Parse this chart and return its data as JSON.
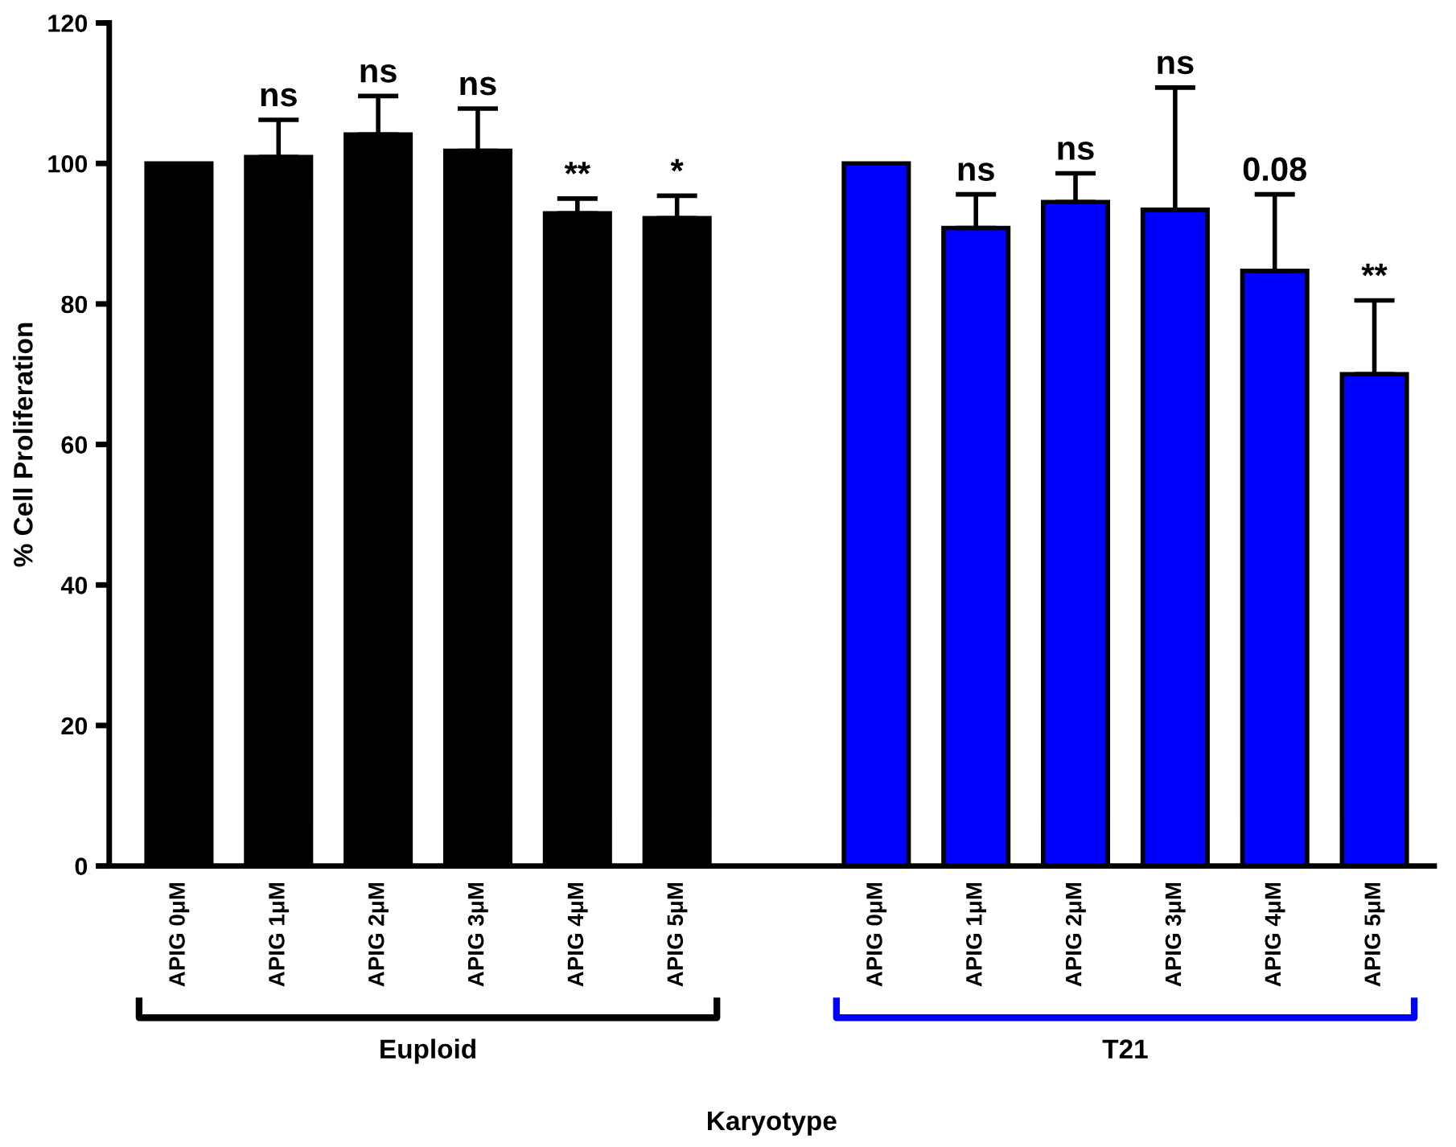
{
  "chart_data": {
    "type": "bar",
    "xlabel": "Karyotype",
    "ylabel": "% Cell Proliferation",
    "categories": [
      "APIG 0μM",
      "APIG 1μM",
      "APIG 2μM",
      "APIG 3μM",
      "APIG 4μM",
      "APIG 5μM",
      null,
      "APIG 0μM",
      "APIG 1μM",
      "APIG 2μM",
      "APIG 3μM",
      "APIG 4μM",
      "APIG 5μM"
    ],
    "values": [
      100,
      100.9,
      104.1,
      101.8,
      92.9,
      92.2,
      null,
      100,
      90.8,
      94.5,
      93.4,
      84.7,
      70.0
    ],
    "errors": [
      null,
      5.3,
      5.5,
      6.0,
      2.1,
      3.2,
      null,
      null,
      4.8,
      4.1,
      17.4,
      10.9,
      10.5
    ],
    "colors": [
      "#000000",
      "#000000",
      "#000000",
      "#000000",
      "#000000",
      "#000000",
      null,
      "#0000ff",
      "#0000ff",
      "#0000ff",
      "#0000ff",
      "#0000ff",
      "#0000ff"
    ],
    "annotations": [
      {
        "text": "ns",
        "y": 106.2
      },
      {
        "text": "ns",
        "y": 109.6
      },
      {
        "text": "ns",
        "y": 107.8
      },
      {
        "text": "**",
        "y": 95.0
      },
      {
        "text": "*",
        "y": 95.4
      },
      {
        "text": "ns",
        "y": 95.6
      },
      {
        "text": "ns",
        "y": 98.6
      },
      {
        "text": "ns",
        "y": 110.8
      },
      {
        "text": "0.08",
        "y": 95.6
      },
      {
        "text": "**",
        "y": 80.5
      },
      "Euploid",
      "T21"
    ],
    "ylim": [
      0,
      120
    ],
    "yticks": [
      0,
      20,
      40,
      60,
      80,
      100,
      120
    ],
    "grid": false,
    "legend": false
  }
}
